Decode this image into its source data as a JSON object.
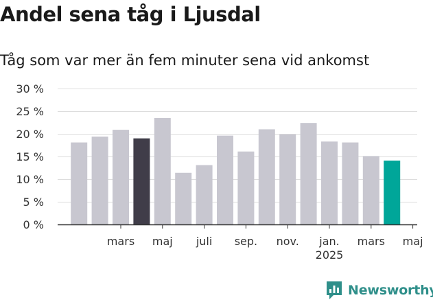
{
  "header": {
    "title": "Andel sena tåg i Ljusdal",
    "subtitle": "Tåg som var mer än fem minuter sena vid ankomst"
  },
  "branding": {
    "logo_text": "Newsworthy",
    "logo_icon": "bar-chart-speech-bubble-icon",
    "logo_color": "#2f8f8a"
  },
  "chart_data": {
    "type": "bar",
    "title": "Andel sena tåg i Ljusdal",
    "subtitle": "Tåg som var mer än fem minuter sena vid ankomst",
    "xlabel": "",
    "ylabel": "",
    "ylim": [
      0,
      30
    ],
    "yticks": [
      0,
      5,
      10,
      15,
      20,
      25,
      30
    ],
    "ytick_labels": [
      "0 %",
      "5 %",
      "10 %",
      "15 %",
      "20 %",
      "25 %",
      "30 %"
    ],
    "grid": true,
    "legend": "none",
    "categories": [
      "2024-01",
      "2024-02",
      "2024-03",
      "2024-04",
      "2024-05",
      "2024-06",
      "2024-07",
      "2024-08",
      "2024-09",
      "2024-10",
      "2024-11",
      "2024-12",
      "2025-01",
      "2025-02",
      "2025-03",
      "2025-04",
      "2025-05"
    ],
    "values": [
      18.1,
      19.4,
      20.9,
      19.0,
      23.5,
      11.4,
      13.1,
      19.6,
      16.1,
      21.0,
      19.9,
      22.4,
      18.3,
      18.1,
      15.1,
      14.1,
      null
    ],
    "x_tick_labels": [
      {
        "category": "2024-03",
        "label": "mars"
      },
      {
        "category": "2024-05",
        "label": "maj"
      },
      {
        "category": "2024-07",
        "label": "juli"
      },
      {
        "category": "2024-09",
        "label": "sep."
      },
      {
        "category": "2024-11",
        "label": "nov."
      },
      {
        "category": "2025-01",
        "label": "jan.",
        "sublabel": "2025"
      },
      {
        "category": "2025-03",
        "label": "mars"
      },
      {
        "category": "2025-05",
        "label": "maj"
      }
    ],
    "colors": {
      "default": "#c8c7d0",
      "highlight_dark": "#403d49",
      "highlight_teal": "#00a699",
      "grid": "#dddddd",
      "axis": "#333333"
    },
    "highlights": [
      {
        "category": "2024-04",
        "color": "highlight_dark"
      },
      {
        "category": "2025-04",
        "color": "highlight_teal"
      }
    ]
  }
}
